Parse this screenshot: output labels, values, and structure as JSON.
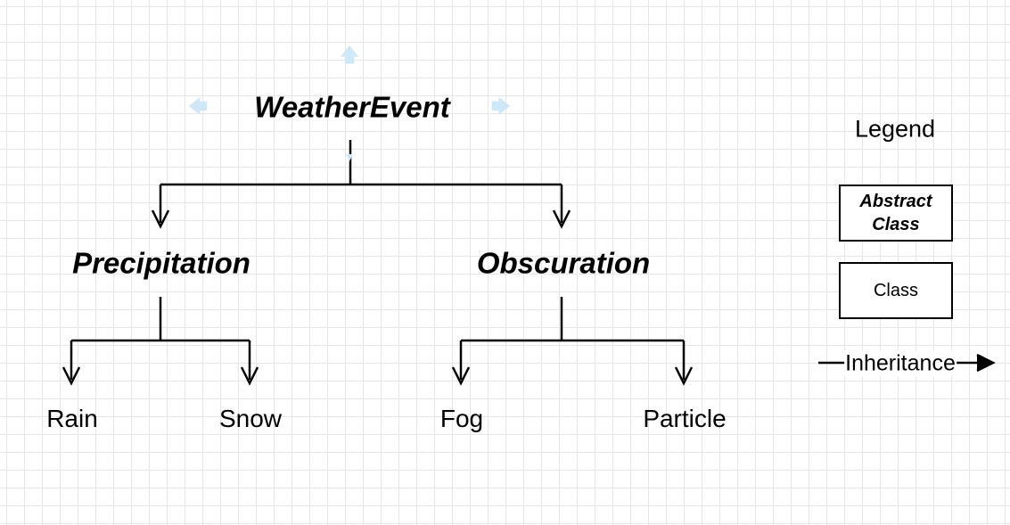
{
  "diagram": {
    "type": "class-hierarchy",
    "root": {
      "name": "WeatherEvent",
      "kind": "abstract"
    },
    "level1": [
      {
        "name": "Precipitation",
        "kind": "abstract",
        "parent": "WeatherEvent"
      },
      {
        "name": "Obscuration",
        "kind": "abstract",
        "parent": "WeatherEvent"
      }
    ],
    "level2": [
      {
        "name": "Rain",
        "kind": "class",
        "parent": "Precipitation"
      },
      {
        "name": "Snow",
        "kind": "class",
        "parent": "Precipitation"
      },
      {
        "name": "Fog",
        "kind": "class",
        "parent": "Obscuration"
      },
      {
        "name": "Particle",
        "kind": "class",
        "parent": "Obscuration"
      }
    ],
    "edge_type": "inheritance",
    "edge_color": "#000000",
    "hint_color": "#cfe8f7",
    "hint_icons": [
      "arrow-up",
      "arrow-left",
      "arrow-right",
      "arrow-down"
    ]
  },
  "legend": {
    "title": "Legend",
    "abstract_label": "Abstract\nClass",
    "class_label": "Class",
    "inheritance_label": "Inheritance"
  }
}
